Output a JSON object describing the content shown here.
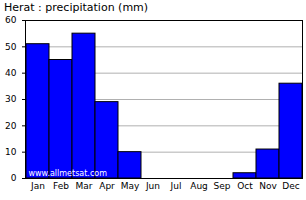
{
  "chart_data": {
    "type": "bar",
    "title": "Herat : precipitation (mm)",
    "categories": [
      "Jan",
      "Feb",
      "Mar",
      "Apr",
      "May",
      "Jun",
      "Jul",
      "Aug",
      "Sep",
      "Oct",
      "Nov",
      "Dec"
    ],
    "values": [
      51,
      45,
      55,
      29,
      10,
      0,
      0,
      0,
      0,
      2,
      11,
      36
    ],
    "color": "#0000ff",
    "ylim": [
      0,
      60
    ],
    "yticks": [
      0,
      10,
      20,
      30,
      40,
      50,
      60
    ],
    "grid": true,
    "annotations": [
      "www.allmetsat.com"
    ]
  }
}
